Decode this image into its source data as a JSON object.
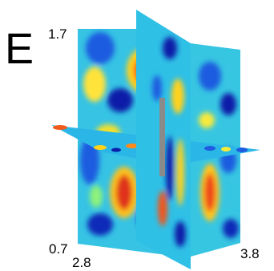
{
  "panel_letter": "E",
  "axis_labels": {
    "z_top": "1.7",
    "z_bottom": "0.7",
    "x_left": "2.8",
    "x_right": "3.8"
  },
  "colormap": "jet",
  "colors": {
    "background": "#ffffff",
    "text": "#000000",
    "probe": "#8a8a8a"
  }
}
